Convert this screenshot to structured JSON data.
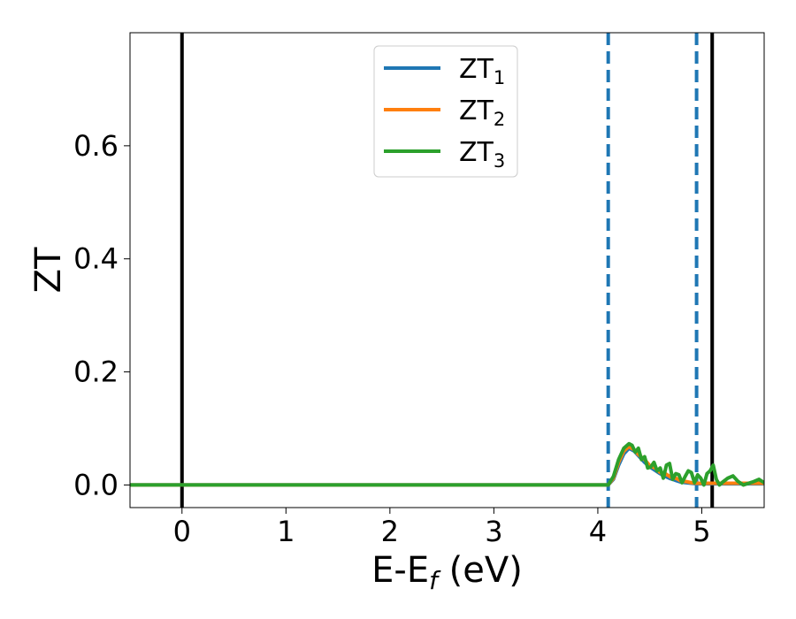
{
  "chart_data": {
    "type": "line",
    "title": "",
    "xlabel": "E-E",
    "xlabel_sub": "f",
    "xlabel_unit": " (eV)",
    "ylabel": "ZT",
    "xlim": [
      -0.5,
      5.6
    ],
    "ylim": [
      -0.04,
      0.8
    ],
    "xticks": [
      0,
      1,
      2,
      3,
      4,
      5
    ],
    "xtick_labels": [
      "0",
      "1",
      "2",
      "3",
      "4",
      "5"
    ],
    "yticks": [
      0.0,
      0.2,
      0.4,
      0.6
    ],
    "ytick_labels": [
      "0.0",
      "0.2",
      "0.4",
      "0.6"
    ],
    "grid": false,
    "legend_position": "top-center",
    "legend": [
      {
        "label": "ZT",
        "sub": "1",
        "color": "#1f77b4"
      },
      {
        "label": "ZT",
        "sub": "2",
        "color": "#ff7f0e"
      },
      {
        "label": "ZT",
        "sub": "3",
        "color": "#2ca02c"
      }
    ],
    "vlines": [
      {
        "x": 0.0,
        "color": "#000000",
        "style": "solid"
      },
      {
        "x": 5.1,
        "color": "#000000",
        "style": "solid"
      },
      {
        "x": 4.1,
        "color": "#1f77b4",
        "style": "dashed"
      },
      {
        "x": 4.95,
        "color": "#1f77b4",
        "style": "dashed"
      }
    ],
    "series": [
      {
        "name": "ZT1",
        "color": "#1f77b4",
        "x": [
          -0.5,
          4.1,
          4.15,
          4.2,
          4.25,
          4.3,
          4.35,
          4.4,
          4.45,
          4.5,
          4.55,
          4.6,
          4.65,
          4.7,
          4.75,
          4.8,
          4.85,
          4.9,
          4.95,
          5.0,
          5.05,
          5.1,
          5.2,
          5.3,
          5.4,
          5.5,
          5.6
        ],
        "y": [
          0.0,
          0.0,
          0.01,
          0.035,
          0.055,
          0.065,
          0.06,
          0.05,
          0.04,
          0.032,
          0.026,
          0.02,
          0.015,
          0.011,
          0.008,
          0.005,
          0.004,
          0.003,
          0.002,
          0.002,
          0.002,
          0.002,
          0.002,
          0.002,
          0.002,
          0.002,
          0.002
        ]
      },
      {
        "name": "ZT2",
        "color": "#ff7f0e",
        "x": [
          -0.5,
          4.1,
          4.15,
          4.2,
          4.25,
          4.3,
          4.35,
          4.4,
          4.45,
          4.5,
          4.55,
          4.6,
          4.65,
          4.7,
          4.75,
          4.8,
          4.85,
          4.9,
          4.95,
          5.0,
          5.05,
          5.1,
          5.2,
          5.3,
          5.4,
          5.5,
          5.6
        ],
        "y": [
          0.0,
          0.0,
          0.012,
          0.04,
          0.06,
          0.068,
          0.062,
          0.052,
          0.045,
          0.034,
          0.03,
          0.022,
          0.02,
          0.014,
          0.012,
          0.007,
          0.006,
          0.004,
          0.003,
          0.003,
          0.003,
          0.003,
          0.003,
          0.003,
          0.003,
          0.003,
          0.003
        ]
      },
      {
        "name": "ZT3",
        "color": "#2ca02c",
        "x": [
          -0.5,
          4.1,
          4.15,
          4.2,
          4.25,
          4.3,
          4.33,
          4.36,
          4.39,
          4.42,
          4.45,
          4.48,
          4.51,
          4.54,
          4.57,
          4.6,
          4.63,
          4.66,
          4.69,
          4.72,
          4.75,
          4.78,
          4.81,
          4.84,
          4.87,
          4.9,
          4.93,
          4.96,
          4.99,
          5.02,
          5.05,
          5.08,
          5.11,
          5.14,
          5.17,
          5.2,
          5.25,
          5.3,
          5.35,
          5.4,
          5.45,
          5.5,
          5.55,
          5.6
        ],
        "y": [
          0.0,
          0.0,
          0.015,
          0.045,
          0.065,
          0.073,
          0.07,
          0.058,
          0.065,
          0.045,
          0.05,
          0.03,
          0.032,
          0.04,
          0.025,
          0.03,
          0.012,
          0.035,
          0.038,
          0.01,
          0.02,
          0.018,
          0.004,
          0.015,
          0.025,
          0.022,
          0.004,
          0.018,
          0.012,
          0.0,
          0.02,
          0.025,
          0.035,
          0.01,
          0.0,
          0.005,
          0.012,
          0.016,
          0.006,
          0.0,
          0.003,
          0.006,
          0.01,
          0.004
        ]
      }
    ]
  }
}
